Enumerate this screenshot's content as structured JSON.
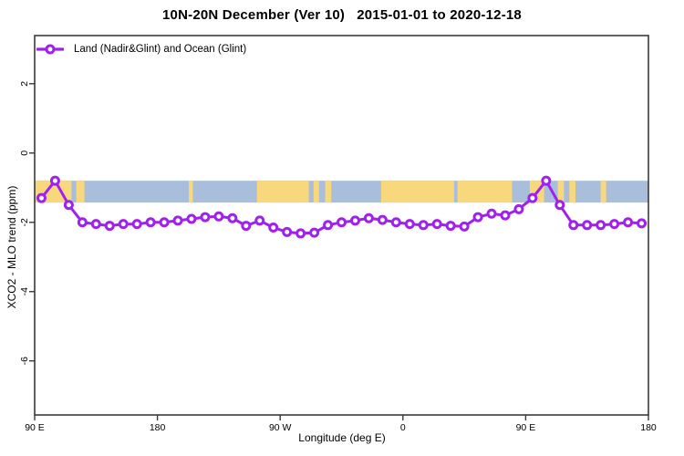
{
  "header": {
    "title": "10N-20N December (Ver 10)   2015-01-01 to 2020-12-18"
  },
  "legend": {
    "label": "Land (Nadir&Glint) and Ocean (Glint)"
  },
  "axes": {
    "x": {
      "label": "Longitude (deg E)",
      "range": [
        90,
        540
      ],
      "ticks": [
        {
          "value": 90,
          "label": "90 E"
        },
        {
          "value": 180,
          "label": "180"
        },
        {
          "value": 270,
          "label": "90 W"
        },
        {
          "value": 360,
          "label": "0"
        },
        {
          "value": 450,
          "label": "90 E"
        },
        {
          "value": 540,
          "label": "180"
        }
      ]
    },
    "y": {
      "label": "XCO2 - MLO trend (ppm)",
      "range": [
        -7.56,
        3.39
      ],
      "ticks": [
        {
          "value": 2,
          "label": "2"
        },
        {
          "value": 0,
          "label": "0"
        },
        {
          "value": -2,
          "label": "-2"
        },
        {
          "value": -4,
          "label": "-4"
        },
        {
          "value": -6,
          "label": "-6"
        }
      ]
    }
  },
  "chart_data": {
    "type": "line",
    "title": "10N-20N December (Ver 10)   2015-01-01 to 2020-12-18",
    "xlabel": "Longitude (deg E)",
    "ylabel": "XCO2 - MLO trend (ppm)",
    "xlim": [
      90,
      540
    ],
    "ylim": [
      -7.56,
      3.39
    ],
    "x_axis_note": "longitude unwraps eastward: 90E, 180, 90W(=270), 0(=360), 90E(=450), 180(=540)",
    "grid": false,
    "legend_position": "top-left-inside",
    "series": [
      {
        "name": "Land (Nadir&Glint) and Ocean (Glint)",
        "marker": "open-circle",
        "x": [
          95,
          105,
          115,
          125,
          135,
          145,
          155,
          165,
          175,
          185,
          195,
          205,
          215,
          225,
          235,
          245,
          255,
          265,
          275,
          285,
          295,
          305,
          315,
          325,
          335,
          345,
          355,
          365,
          375,
          385,
          395,
          405,
          415,
          425,
          435,
          445,
          455,
          465,
          475,
          485,
          495,
          505,
          515,
          525,
          535
        ],
        "y": [
          -1.3,
          -0.8,
          -1.5,
          -2.0,
          -2.05,
          -2.1,
          -2.05,
          -2.05,
          -2.0,
          -2.0,
          -1.95,
          -1.9,
          -1.85,
          -1.83,
          -1.88,
          -2.1,
          -1.95,
          -2.15,
          -2.28,
          -2.32,
          -2.3,
          -2.08,
          -2.0,
          -1.95,
          -1.88,
          -1.93,
          -2.0,
          -2.05,
          -2.08,
          -2.05,
          -2.1,
          -2.12,
          -1.85,
          -1.75,
          -1.8,
          -1.62,
          -1.3,
          -0.8,
          -1.5,
          -2.08,
          -2.08,
          -2.08,
          -2.05,
          -2.0,
          -2.03
        ]
      }
    ],
    "map_band": {
      "description": "latitude-strip map 10N-20N: ocean blue band with yellow land patches",
      "y_top": -0.8,
      "y_bottom": -1.43,
      "land_patches": [
        [
          90,
          117
        ],
        [
          120.5,
          126.5
        ],
        [
          203,
          206
        ],
        [
          253,
          291
        ],
        [
          294.5,
          298.5
        ],
        [
          303,
          307.5
        ],
        [
          344,
          397.5
        ],
        [
          400,
          440
        ],
        [
          453,
          463.5
        ],
        [
          473.5,
          478
        ],
        [
          482,
          486.5
        ],
        [
          505,
          509
        ]
      ]
    }
  },
  "colors": {
    "line": "#a020f0",
    "marker_fill": "#ffffff",
    "axis": "#3a3a3a",
    "text": "#000000",
    "band_ocean": "#a9bedb",
    "band_land": "#f9d77c"
  }
}
